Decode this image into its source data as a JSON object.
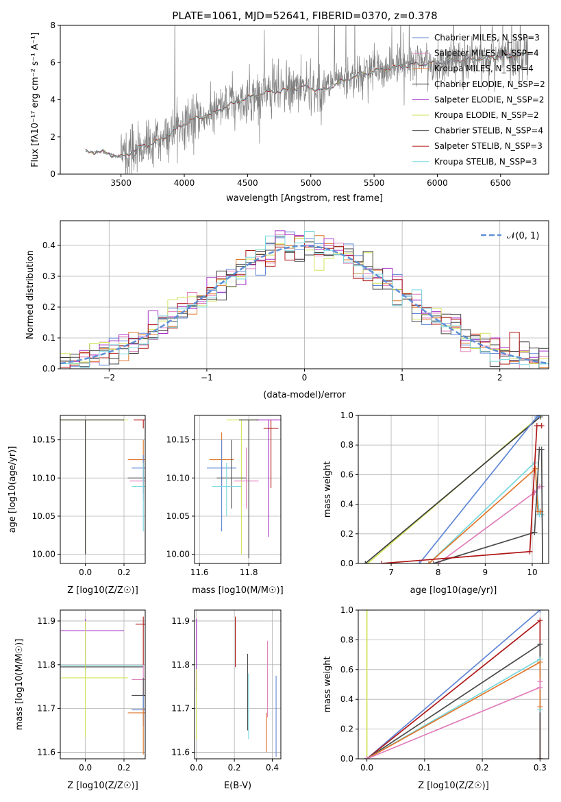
{
  "colors": {
    "chabrier_miles": "#5f86d6",
    "salpeter_miles": "#e07cba",
    "kroupa_miles": "#e0762a",
    "chabrier_elodie": "#3c3c3c",
    "salpeter_elodie": "#a630c8",
    "kroupa_elodie": "#d2e35a",
    "chabrier_stelib": "#4a4a4a",
    "salpeter_stelib": "#b01818",
    "kroupa_stelib": "#78d8e0",
    "data_spectrum": "#808080",
    "normal_curve": "#5f8fd6"
  },
  "chart_data": [
    {
      "id": "spectrum",
      "type": "line",
      "title": "PLATE=1061, MJD=52641, FIBERID=0370, z=0.378",
      "xlabel": "wavelength [Angstrom, rest frame]",
      "ylabel": "Flux [fλ10⁻¹⁷ erg cm⁻² s⁻¹ A⁻¹]",
      "xlim": [
        3020,
        6880
      ],
      "ylim": [
        0,
        8
      ],
      "xticks": [
        3500,
        4000,
        4500,
        5000,
        5500,
        6000,
        6500
      ],
      "yticks": [
        0,
        2,
        4,
        6,
        8
      ],
      "legend": "right",
      "legend_entries": [
        "Chabrier MILES, N_SSP=3",
        "Salpeter MILES, N_SSP=4",
        "Kroupa MILES, N_SSP=4",
        "Chabrier ELODIE, N_SSP=2",
        "Salpeter ELODIE, N_SSP=2",
        "Kroupa ELODIE, N_SSP=2",
        "Chabrier STELIB, N_SSP=4",
        "Salpeter STELIB, N_SSP=3",
        "Kroupa STELIB, N_SSP=3"
      ],
      "model_continuum": {
        "x": [
          3220,
          3350,
          3500,
          3650,
          3800,
          3950,
          4050,
          4200,
          4350,
          4500,
          4650,
          4800,
          4950,
          5100,
          5250,
          5400,
          5550,
          5700,
          5850,
          6000,
          6200,
          6400,
          6600,
          6720
        ],
        "y": [
          1.2,
          1.2,
          0.9,
          1.45,
          1.8,
          2.5,
          2.9,
          3.2,
          3.7,
          4.1,
          4.4,
          4.5,
          4.7,
          4.5,
          5.0,
          5.4,
          5.6,
          5.8,
          5.9,
          6.0,
          6.15,
          6.25,
          6.4,
          6.45
        ]
      },
      "data_noise_sigma": 0.7
    },
    {
      "id": "residuals",
      "type": "step",
      "xlabel": "(data-model)/error",
      "ylabel": "Normed distribution",
      "xlim": [
        -2.5,
        2.5
      ],
      "ylim": [
        0,
        0.48
      ],
      "xticks": [
        -2,
        -1,
        0,
        1,
        2
      ],
      "yticks": [
        0.0,
        0.1,
        0.2,
        0.3,
        0.4
      ],
      "grid": true,
      "legend": "top-right",
      "legend_entries": [
        "𝒩(0, 1)"
      ],
      "bin_edges_start": -2.5,
      "bin_width": 0.1,
      "reference_curve": "normal(0,1)"
    },
    {
      "id": "age_vs_Z",
      "type": "scatter",
      "xlabel": "Z [log10(Z/Z☉)]",
      "ylabel": "age  [log10(age/yr)]",
      "xlim": [
        -0.13,
        0.31
      ],
      "ylim": [
        9.988,
        10.182
      ],
      "xticks": [
        0.0,
        0.2
      ],
      "yticks": [
        10.0,
        10.05,
        10.1,
        10.15
      ],
      "grid": true,
      "points": [
        {
          "series": "kroupa_elodie",
          "x": 0.0,
          "y": 10.176,
          "xerr": 0.22,
          "yerr": [
            10.0,
            10.176
          ]
        },
        {
          "series": "chabrier_elodie",
          "x": 0.0,
          "y": 10.176,
          "xerr": 0.2,
          "yerr": [
            10.0,
            10.176
          ]
        },
        {
          "series": "salpeter_stelib",
          "x": 0.3,
          "y": 10.176,
          "xerr": 0.05,
          "yerr": [
            10.165,
            10.176
          ]
        },
        {
          "series": "kroupa_miles",
          "x": 0.3,
          "y": 10.124,
          "xerr": 0.08,
          "yerr": [
            10.1,
            10.15
          ]
        },
        {
          "series": "chabrier_miles",
          "x": 0.3,
          "y": 10.113,
          "xerr": 0.06,
          "yerr": [
            10.09,
            10.13
          ]
        },
        {
          "series": "chabrier_stelib",
          "x": 0.3,
          "y": 10.1,
          "xerr": 0.08,
          "yerr": [
            10.08,
            10.12
          ]
        },
        {
          "series": "salpeter_miles",
          "x": 0.3,
          "y": 10.096,
          "xerr": 0.07,
          "yerr": [
            10.07,
            10.12
          ]
        },
        {
          "series": "kroupa_stelib",
          "x": 0.3,
          "y": 10.089,
          "xerr": 0.06,
          "yerr": [
            10.03,
            10.12
          ]
        }
      ]
    },
    {
      "id": "age_vs_mass",
      "type": "scatter",
      "xlabel": "mass [log10(M/M☉)]",
      "ylabel": "",
      "xlim": [
        11.58,
        11.93
      ],
      "ylim": [
        9.988,
        10.182
      ],
      "xticks": [
        11.6,
        11.8
      ],
      "yticks": [
        10.0,
        10.05,
        10.1,
        10.15
      ],
      "grid": true,
      "points": [
        {
          "series": "kroupa_elodie",
          "x": 11.77,
          "y": 10.176,
          "xerr": 0.06,
          "yerr": [
            10.0,
            10.176
          ]
        },
        {
          "series": "salpeter_elodie",
          "x": 11.88,
          "y": 10.176,
          "xerr": 0.05,
          "yerr": [
            10.023,
            10.176
          ]
        },
        {
          "series": "salpeter_stelib",
          "x": 11.89,
          "y": 10.165,
          "xerr": 0.03,
          "yerr": [
            10.087,
            10.176
          ]
        },
        {
          "series": "kroupa_miles",
          "x": 11.69,
          "y": 10.124,
          "xerr": 0.05,
          "yerr": [
            10.09,
            10.16
          ]
        },
        {
          "series": "chabrier_miles",
          "x": 11.69,
          "y": 10.113,
          "xerr": 0.06,
          "yerr": [
            10.03,
            10.15
          ]
        },
        {
          "series": "chabrier_stelib",
          "x": 11.73,
          "y": 10.1,
          "xerr": 0.06,
          "yerr": [
            10.06,
            10.15
          ]
        },
        {
          "series": "salpeter_miles",
          "x": 11.79,
          "y": 10.096,
          "xerr": 0.05,
          "yerr": [
            10.06,
            10.14
          ]
        },
        {
          "series": "kroupa_stelib",
          "x": 11.71,
          "y": 10.089,
          "xerr": 0.06,
          "yerr": [
            10.05,
            10.12
          ]
        },
        {
          "series": "chabrier_elodie",
          "x": 11.8,
          "y": 10.176,
          "xerr": 0.04,
          "yerr": [
            9.995,
            10.176
          ]
        }
      ]
    },
    {
      "id": "weight_vs_age",
      "type": "line",
      "xlabel": "age  [log10(age/yr)]",
      "ylabel": "mass weight",
      "xlim": [
        6.3,
        10.35
      ],
      "ylim": [
        0,
        1
      ],
      "xticks": [
        7,
        8,
        9,
        10
      ],
      "yticks": [
        0.0,
        0.2,
        0.4,
        0.6,
        0.8,
        1.0
      ],
      "grid": true,
      "series": [
        {
          "key": "kroupa_elodie",
          "x": [
            6.5,
            10.176
          ],
          "y": [
            0.0,
            1.0
          ]
        },
        {
          "key": "chabrier_elodie",
          "x": [
            6.45,
            10.17
          ],
          "y": [
            0.0,
            0.99
          ]
        },
        {
          "key": "chabrier_miles",
          "x": [
            7.6,
            10.1,
            10.15
          ],
          "y": [
            0.0,
            0.99,
            1.0
          ]
        },
        {
          "key": "kroupa_stelib",
          "x": [
            7.8,
            10.05,
            10.15,
            10.2
          ],
          "y": [
            0.0,
            0.68,
            0.33,
            0.33
          ]
        },
        {
          "key": "kroupa_miles",
          "x": [
            7.8,
            10.07,
            10.12,
            10.18
          ],
          "y": [
            0.0,
            0.64,
            0.35,
            0.35
          ]
        },
        {
          "key": "salpeter_miles",
          "x": [
            8.0,
            10.05,
            10.16,
            10.2
          ],
          "y": [
            0.0,
            0.48,
            0.52,
            0.52
          ]
        },
        {
          "key": "chabrier_stelib",
          "x": [
            7.9,
            10.05,
            10.15,
            10.2,
            10.22
          ],
          "y": [
            0.0,
            0.21,
            0.77,
            0.77,
            0.0
          ]
        },
        {
          "key": "salpeter_stelib",
          "x": [
            6.8,
            9.95,
            10.1,
            10.2
          ],
          "y": [
            0.0,
            0.08,
            0.93,
            0.93
          ]
        }
      ]
    },
    {
      "id": "mass_vs_Z",
      "type": "scatter",
      "xlabel": "Z [log10(Z/Z☉)]",
      "ylabel": "mass [log10(M/M☉)]",
      "xlim": [
        -0.13,
        0.31
      ],
      "ylim": [
        11.585,
        11.925
      ],
      "xticks": [
        0.0,
        0.2
      ],
      "yticks": [
        11.6,
        11.7,
        11.8,
        11.9
      ],
      "grid": true,
      "points": [
        {
          "series": "salpeter_elodie",
          "x": 0.0,
          "y": 11.878,
          "xerr": 0.2,
          "yerr": [
            11.79,
            11.905
          ]
        },
        {
          "series": "kroupa_stelib",
          "x": 0.0,
          "y": 11.798,
          "xerr": 0.3,
          "yerr": [
            11.78,
            11.82
          ]
        },
        {
          "series": "chabrier_elodie",
          "x": 0.0,
          "y": 11.795,
          "xerr": 0.3,
          "yerr": [
            11.79,
            11.8
          ]
        },
        {
          "series": "kroupa_elodie",
          "x": 0.0,
          "y": 11.77,
          "xerr": 0.22,
          "yerr": [
            11.635,
            11.9
          ]
        },
        {
          "series": "salpeter_stelib",
          "x": 0.3,
          "y": 11.893,
          "xerr": 0.04,
          "yerr": [
            11.8,
            11.91
          ]
        },
        {
          "series": "salpeter_miles",
          "x": 0.3,
          "y": 11.766,
          "xerr": 0.06,
          "yerr": [
            11.73,
            11.8
          ]
        },
        {
          "series": "chabrier_stelib",
          "x": 0.3,
          "y": 11.73,
          "xerr": 0.06,
          "yerr": [
            11.7,
            11.77
          ]
        },
        {
          "series": "chabrier_miles",
          "x": 0.3,
          "y": 11.697,
          "xerr": 0.06,
          "yerr": [
            11.66,
            11.73
          ]
        },
        {
          "series": "kroupa_miles",
          "x": 0.3,
          "y": 11.69,
          "xerr": 0.08,
          "yerr": [
            11.595,
            11.7
          ]
        }
      ]
    },
    {
      "id": "mass_vs_ebv",
      "type": "scatter",
      "xlabel": "E(B-V)",
      "ylabel": "",
      "xlim": [
        -0.01,
        0.445
      ],
      "ylim": [
        11.585,
        11.925
      ],
      "xticks": [
        0.0,
        0.2,
        0.4
      ],
      "yticks": [
        11.6,
        11.7,
        11.8,
        11.9
      ],
      "grid": true,
      "points": [
        {
          "series": "salpeter_elodie",
          "x": 0.0,
          "yerr": [
            11.74,
            11.905
          ]
        },
        {
          "series": "kroupa_elodie",
          "x": 0.0,
          "yerr": [
            11.63,
            11.79
          ]
        },
        {
          "series": "salpeter_stelib",
          "x": 0.205,
          "yerr": [
            11.795,
            11.91
          ]
        },
        {
          "series": "chabrier_stelib",
          "x": 0.27,
          "yerr": [
            11.65,
            11.825
          ]
        },
        {
          "series": "kroupa_stelib",
          "x": 0.275,
          "yerr": [
            11.63,
            11.78
          ]
        },
        {
          "series": "kroupa_miles",
          "x": 0.37,
          "yerr": [
            11.6,
            11.69
          ]
        },
        {
          "series": "salpeter_miles",
          "x": 0.375,
          "yerr": [
            11.68,
            11.855
          ]
        },
        {
          "series": "chabrier_miles",
          "x": 0.42,
          "yerr": [
            11.59,
            11.775
          ]
        }
      ]
    },
    {
      "id": "weight_vs_Z",
      "type": "line",
      "xlabel": "Z [log10(Z/Z☉)]",
      "ylabel": "mass weight",
      "xlim": [
        -0.015,
        0.315
      ],
      "ylim": [
        0,
        1
      ],
      "xticks": [
        0.0,
        0.1,
        0.2,
        0.3
      ],
      "yticks": [
        0.0,
        0.2,
        0.4,
        0.6,
        0.8,
        1.0
      ],
      "grid": true,
      "series": [
        {
          "key": "kroupa_elodie",
          "x": [
            0.0,
            0.0
          ],
          "y": [
            0.0,
            1.0
          ]
        },
        {
          "key": "chabrier_miles",
          "x": [
            0.0,
            0.3
          ],
          "y": [
            0.0,
            1.0
          ]
        },
        {
          "key": "salpeter_stelib",
          "x": [
            0.0,
            0.3,
            0.3
          ],
          "y": [
            0.0,
            0.93,
            0.0
          ]
        },
        {
          "key": "chabrier_stelib",
          "x": [
            0.0,
            0.3,
            0.3
          ],
          "y": [
            0.0,
            0.77,
            0.0
          ]
        },
        {
          "key": "kroupa_stelib",
          "x": [
            0.0,
            0.3,
            0.3
          ],
          "y": [
            0.0,
            0.67,
            0.33
          ]
        },
        {
          "key": "kroupa_miles",
          "x": [
            0.0,
            0.3,
            0.3
          ],
          "y": [
            0.0,
            0.65,
            0.35
          ]
        },
        {
          "key": "salpeter_miles",
          "x": [
            0.0,
            0.3,
            0.3
          ],
          "y": [
            0.0,
            0.48,
            0.52
          ]
        }
      ]
    }
  ]
}
